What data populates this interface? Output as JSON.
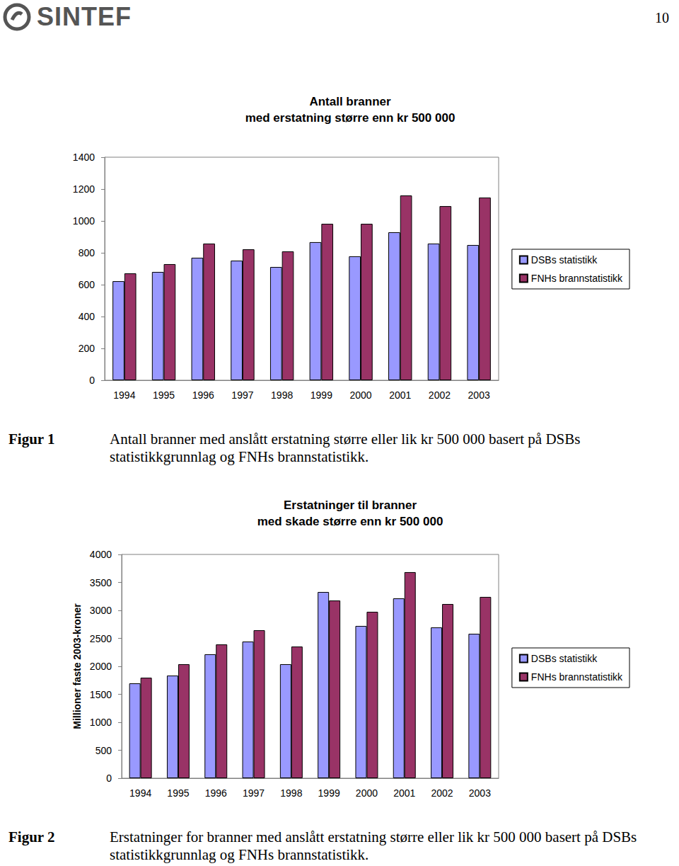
{
  "header": {
    "logo": "SINTEF",
    "page": "10"
  },
  "captions": [
    {
      "label": "Figur 1",
      "text": "Antall branner med anslått erstatning større eller lik kr 500 000 basert på DSBs statistikkgrunnlag og FNHs brannstatistikk."
    },
    {
      "label": "Figur 2",
      "text": "Erstatninger for branner med anslått erstatning større eller lik kr 500 000 basert på DSBs statistikkgrunnlag og FNHs brannstatistikk."
    }
  ],
  "chart_data": [
    {
      "type": "bar",
      "title": "Antall branner",
      "subtitle": "med erstatning større enn kr 500 000",
      "categories": [
        "1994",
        "1995",
        "1996",
        "1997",
        "1998",
        "1999",
        "2000",
        "2001",
        "2002",
        "2003"
      ],
      "series": [
        {
          "name": "DSBs statistikk",
          "color": "#9999ff",
          "values": [
            622,
            680,
            769,
            751,
            711,
            867,
            778,
            929,
            858,
            849
          ]
        },
        {
          "name": "FNHs brannstatistikk",
          "color": "#993366",
          "values": [
            671,
            729,
            858,
            822,
            809,
            982,
            982,
            1160,
            1093,
            1147
          ]
        }
      ],
      "ylim": [
        0,
        1400
      ],
      "yticks": [
        0,
        200,
        400,
        600,
        800,
        1000,
        1200,
        1400
      ],
      "grid": false,
      "legend": "right"
    },
    {
      "type": "bar",
      "title": "Erstatninger til branner",
      "subtitle": "med skade større enn kr 500 000",
      "y_label": "Millioner faste 2003-kroner",
      "categories": [
        "1994",
        "1995",
        "1996",
        "1997",
        "1998",
        "1999",
        "2000",
        "2001",
        "2002",
        "2003"
      ],
      "series": [
        {
          "name": "DSBs statistikk",
          "color": "#9999ff",
          "values": [
            1696,
            1835,
            2215,
            2443,
            2038,
            3329,
            2722,
            3215,
            2696,
            2582
          ]
        },
        {
          "name": "FNHs brannstatistikk",
          "color": "#993366",
          "values": [
            1797,
            2038,
            2392,
            2646,
            2354,
            3177,
            2975,
            3684,
            3114,
            3241
          ]
        }
      ],
      "ylim": [
        0,
        4000
      ],
      "yticks": [
        0,
        500,
        1000,
        1500,
        2000,
        2500,
        3000,
        3500,
        4000
      ],
      "grid": false,
      "legend": "right"
    }
  ]
}
